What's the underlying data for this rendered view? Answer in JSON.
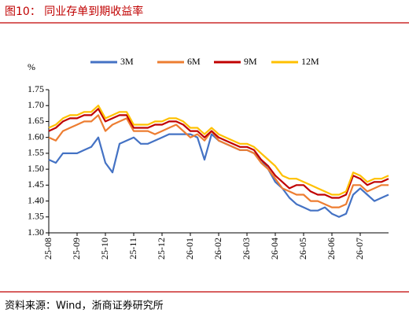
{
  "chart_data": {
    "type": "line",
    "title": "图10：  同业存单到期收益率",
    "y_label": "%",
    "source": "资料来源：Wind，浙商证券研究所",
    "categories": [
      "25-08",
      null,
      null,
      null,
      "25-09",
      null,
      null,
      null,
      "25-10",
      null,
      null,
      null,
      "25-11",
      null,
      null,
      null,
      "25-12",
      null,
      null,
      null,
      "26-01",
      null,
      null,
      null,
      "26-02",
      null,
      null,
      null,
      "26-03",
      null,
      null,
      null,
      "26-04",
      null,
      null,
      null,
      "26-05",
      null,
      null,
      null,
      "26-06",
      null,
      null,
      null,
      "26-07",
      null,
      null,
      null,
      null
    ],
    "series": [
      {
        "name": "3M",
        "color": "#4472c4",
        "values": [
          1.53,
          1.52,
          1.55,
          1.55,
          1.55,
          1.56,
          1.57,
          1.6,
          1.52,
          1.49,
          1.58,
          1.59,
          1.6,
          1.58,
          1.58,
          1.59,
          1.6,
          1.61,
          1.61,
          1.61,
          1.61,
          1.6,
          1.53,
          1.61,
          1.59,
          1.58,
          1.57,
          1.56,
          1.56,
          1.55,
          1.53,
          1.5,
          1.46,
          1.44,
          1.41,
          1.39,
          1.38,
          1.37,
          1.37,
          1.38,
          1.36,
          1.35,
          1.36,
          1.42,
          1.44,
          1.42,
          1.4,
          1.41,
          1.42
        ]
      },
      {
        "name": "6M",
        "color": "#ed7d31",
        "values": [
          1.6,
          1.59,
          1.62,
          1.63,
          1.64,
          1.65,
          1.65,
          1.67,
          1.62,
          1.64,
          1.65,
          1.66,
          1.62,
          1.62,
          1.62,
          1.61,
          1.62,
          1.63,
          1.64,
          1.62,
          1.6,
          1.61,
          1.59,
          1.62,
          1.59,
          1.58,
          1.57,
          1.56,
          1.56,
          1.55,
          1.52,
          1.5,
          1.47,
          1.44,
          1.43,
          1.42,
          1.42,
          1.4,
          1.4,
          1.39,
          1.38,
          1.38,
          1.39,
          1.45,
          1.45,
          1.43,
          1.44,
          1.45,
          1.45
        ]
      },
      {
        "name": "9M",
        "color": "#c00000",
        "values": [
          1.62,
          1.63,
          1.65,
          1.66,
          1.66,
          1.67,
          1.67,
          1.69,
          1.65,
          1.66,
          1.67,
          1.67,
          1.63,
          1.63,
          1.63,
          1.64,
          1.64,
          1.65,
          1.65,
          1.64,
          1.62,
          1.62,
          1.6,
          1.62,
          1.6,
          1.59,
          1.58,
          1.57,
          1.57,
          1.56,
          1.53,
          1.51,
          1.48,
          1.46,
          1.44,
          1.45,
          1.45,
          1.43,
          1.42,
          1.42,
          1.41,
          1.41,
          1.42,
          1.48,
          1.47,
          1.45,
          1.46,
          1.46,
          1.47
        ]
      },
      {
        "name": "12M",
        "color": "#ffc000",
        "values": [
          1.63,
          1.64,
          1.66,
          1.67,
          1.67,
          1.68,
          1.68,
          1.7,
          1.66,
          1.67,
          1.68,
          1.68,
          1.64,
          1.64,
          1.64,
          1.65,
          1.65,
          1.66,
          1.66,
          1.65,
          1.63,
          1.63,
          1.61,
          1.63,
          1.61,
          1.6,
          1.59,
          1.58,
          1.58,
          1.57,
          1.55,
          1.53,
          1.51,
          1.48,
          1.47,
          1.47,
          1.46,
          1.45,
          1.44,
          1.43,
          1.42,
          1.42,
          1.43,
          1.49,
          1.48,
          1.46,
          1.47,
          1.47,
          1.48
        ]
      }
    ],
    "ylim": [
      1.3,
      1.75
    ],
    "yticks": [
      {
        "value": 1.3,
        "label": "1.30"
      },
      1.35,
      {
        "value": 1.4,
        "label": "1.40"
      },
      1.45,
      {
        "value": 1.5,
        "label": "1.50"
      },
      1.55,
      {
        "value": 1.6,
        "label": "1.60"
      },
      1.65,
      {
        "value": 1.7,
        "label": "1.70"
      },
      1.75
    ],
    "grid": false,
    "legend": "top"
  }
}
